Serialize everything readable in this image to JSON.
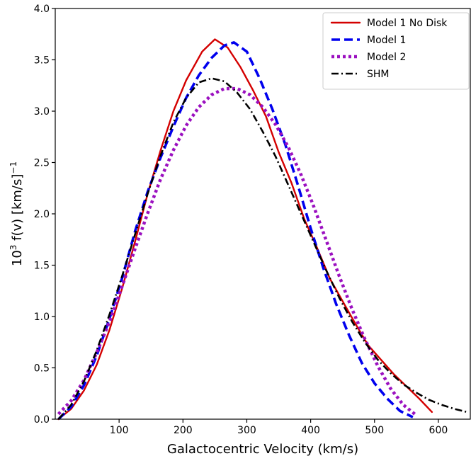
{
  "chart_data": {
    "type": "line",
    "title": "",
    "xlabel": "Galactocentric Velocity (km/s)",
    "ylabel_main": "10",
    "ylabel_sup": "3",
    "ylabel_rest": " f(v) [km/s]",
    "ylabel_sup2": "−1",
    "xlim": [
      0,
      650
    ],
    "ylim": [
      0,
      4.0
    ],
    "xticks": [
      100,
      200,
      300,
      400,
      500,
      600
    ],
    "xtick_labels": [
      "100",
      "200",
      "300",
      "400",
      "500",
      "600"
    ],
    "yticks": [
      0,
      0.5,
      1.0,
      1.5,
      2.0,
      2.5,
      3.0,
      3.5,
      4.0
    ],
    "ytick_labels": [
      "0.0",
      "0.5",
      "1.0",
      "1.5",
      "2.0",
      "2.5",
      "3.0",
      "3.5",
      "4.0"
    ],
    "grid": false,
    "legend_position": "top-right",
    "series": [
      {
        "name": "Model 1 No Disk",
        "color": "#d40000",
        "style": "solid",
        "x": [
          5,
          25,
          45,
          65,
          85,
          105,
          125,
          145,
          165,
          185,
          205,
          230,
          250,
          270,
          290,
          310,
          330,
          350,
          370,
          390,
          410,
          430,
          450,
          470,
          490,
          510,
          530,
          550,
          570,
          590
        ],
        "y": [
          0.0,
          0.1,
          0.28,
          0.53,
          0.87,
          1.28,
          1.73,
          2.2,
          2.62,
          3.0,
          3.3,
          3.58,
          3.7,
          3.62,
          3.43,
          3.2,
          2.95,
          2.6,
          2.3,
          1.95,
          1.67,
          1.37,
          1.15,
          0.93,
          0.72,
          0.58,
          0.44,
          0.32,
          0.2,
          0.07
        ]
      },
      {
        "name": "Model 1",
        "color": "#0000ee",
        "style": "dashed",
        "x": [
          5,
          25,
          45,
          65,
          85,
          105,
          125,
          145,
          165,
          185,
          205,
          225,
          245,
          265,
          280,
          300,
          320,
          340,
          360,
          380,
          400,
          420,
          440,
          460,
          480,
          500,
          520,
          540,
          560
        ],
        "y": [
          0.0,
          0.12,
          0.33,
          0.62,
          0.98,
          1.38,
          1.83,
          2.22,
          2.55,
          2.85,
          3.13,
          3.35,
          3.52,
          3.64,
          3.67,
          3.58,
          3.32,
          3.02,
          2.68,
          2.28,
          1.86,
          1.47,
          1.12,
          0.82,
          0.55,
          0.35,
          0.2,
          0.08,
          0.02
        ]
      },
      {
        "name": "Model 2",
        "color": "#9b10c0",
        "style": "dotted",
        "x": [
          5,
          25,
          45,
          65,
          85,
          105,
          125,
          145,
          165,
          185,
          205,
          225,
          245,
          265,
          285,
          305,
          325,
          345,
          365,
          385,
          405,
          425,
          445,
          465,
          485,
          505,
          525,
          545,
          565
        ],
        "y": [
          0.05,
          0.18,
          0.38,
          0.65,
          0.95,
          1.3,
          1.66,
          2.01,
          2.34,
          2.62,
          2.86,
          3.04,
          3.16,
          3.22,
          3.22,
          3.16,
          3.04,
          2.87,
          2.65,
          2.38,
          2.07,
          1.73,
          1.39,
          1.07,
          0.78,
          0.52,
          0.3,
          0.14,
          0.04
        ]
      },
      {
        "name": "SHM",
        "color": "#000000",
        "style": "dashdot",
        "x": [
          5,
          25,
          45,
          65,
          85,
          105,
          125,
          145,
          165,
          185,
          205,
          225,
          245,
          265,
          285,
          305,
          325,
          345,
          365,
          385,
          405,
          425,
          445,
          465,
          485,
          505,
          525,
          545,
          565,
          585,
          605,
          625,
          645
        ],
        "y": [
          0.0,
          0.14,
          0.37,
          0.67,
          1.02,
          1.4,
          1.8,
          2.2,
          2.57,
          2.89,
          3.13,
          3.28,
          3.32,
          3.29,
          3.18,
          3.02,
          2.8,
          2.56,
          2.28,
          2.0,
          1.72,
          1.44,
          1.18,
          0.95,
          0.75,
          0.58,
          0.45,
          0.34,
          0.26,
          0.19,
          0.14,
          0.1,
          0.07
        ]
      }
    ]
  }
}
